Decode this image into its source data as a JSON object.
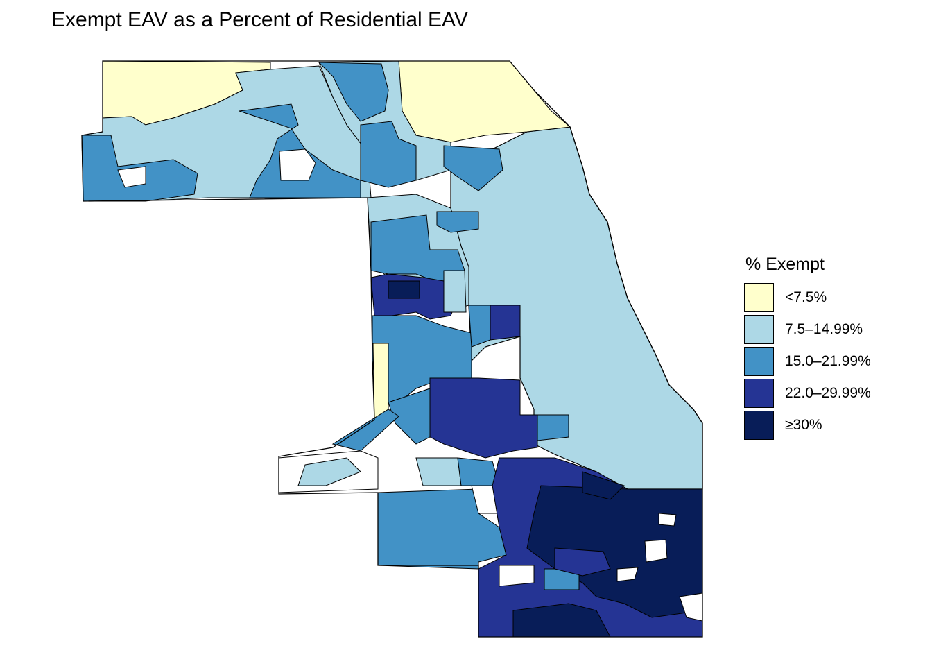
{
  "title": "Exempt EAV as a Percent of Residential EAV",
  "legend": {
    "title": "% Exempt",
    "items": [
      {
        "label": "<7.5%",
        "color": "#FFFFCC"
      },
      {
        "label": "7.5–14.99%",
        "color": "#ADD8E6"
      },
      {
        "label": "15.0–21.99%",
        "color": "#4292C6"
      },
      {
        "label": "22.0–29.99%",
        "color": "#253494"
      },
      {
        "label": "≥30%",
        "color": "#081D58"
      }
    ]
  },
  "map": {
    "outline_color": "#000000",
    "no_data_color": "#FFFFFF"
  }
}
